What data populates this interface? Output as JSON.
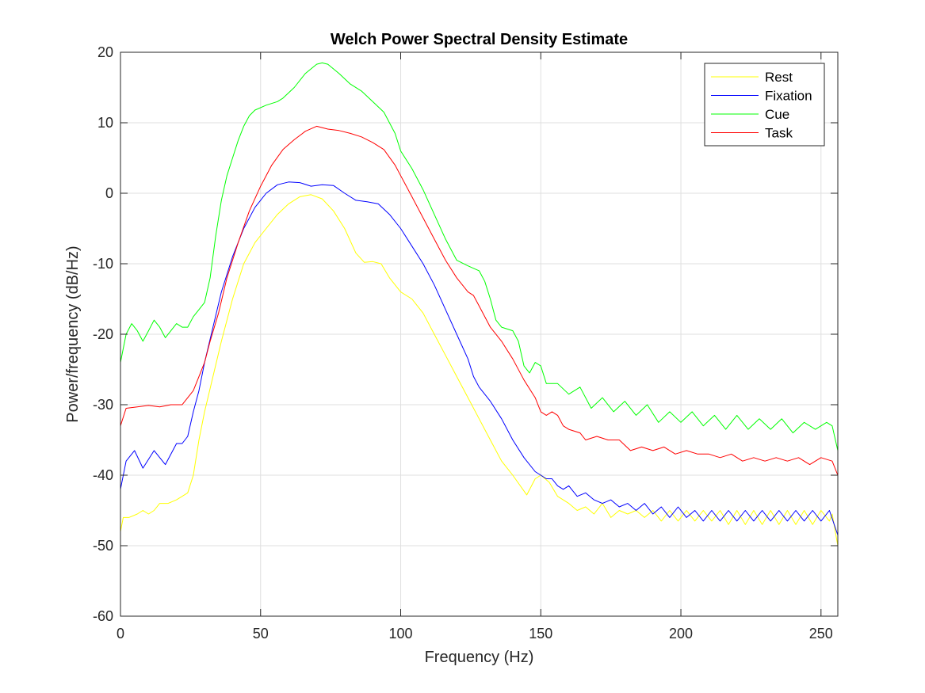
{
  "chart_data": {
    "type": "line",
    "title": "Welch Power Spectral Density Estimate",
    "xlabel": "Frequency (Hz)",
    "ylabel": "Power/frequency (dB/Hz)",
    "xlim": [
      0,
      256
    ],
    "ylim": [
      -60,
      20
    ],
    "xticks": [
      0,
      50,
      100,
      150,
      200,
      250
    ],
    "yticks": [
      -60,
      -50,
      -40,
      -30,
      -20,
      -10,
      0,
      10,
      20
    ],
    "xtick_labels": [
      "0",
      "50",
      "100",
      "150",
      "200",
      "250"
    ],
    "ytick_labels": [
      "-60",
      "-50",
      "-40",
      "-30",
      "-20",
      "-10",
      "0",
      "10",
      "20"
    ],
    "grid": true,
    "legend_position": "top-right",
    "series": [
      {
        "name": "Rest",
        "color": "#ffff00",
        "points": [
          [
            0,
            -48
          ],
          [
            1,
            -46
          ],
          [
            3,
            -46
          ],
          [
            6,
            -45.5
          ],
          [
            8,
            -45
          ],
          [
            10,
            -45.5
          ],
          [
            12,
            -45
          ],
          [
            14,
            -44
          ],
          [
            17,
            -44
          ],
          [
            20,
            -43.5
          ],
          [
            22,
            -43
          ],
          [
            24,
            -42.5
          ],
          [
            26,
            -40
          ],
          [
            28,
            -35
          ],
          [
            30,
            -31
          ],
          [
            33,
            -26
          ],
          [
            36,
            -21
          ],
          [
            40,
            -15
          ],
          [
            44,
            -10
          ],
          [
            48,
            -7
          ],
          [
            52,
            -5
          ],
          [
            56,
            -3
          ],
          [
            60,
            -1.5
          ],
          [
            64,
            -0.5
          ],
          [
            68,
            -0.2
          ],
          [
            72,
            -0.8
          ],
          [
            76,
            -2.5
          ],
          [
            80,
            -5
          ],
          [
            84,
            -8.5
          ],
          [
            87,
            -9.8
          ],
          [
            90,
            -9.7
          ],
          [
            93,
            -10
          ],
          [
            96,
            -12
          ],
          [
            100,
            -14
          ],
          [
            104,
            -15
          ],
          [
            108,
            -17
          ],
          [
            112,
            -20
          ],
          [
            116,
            -23
          ],
          [
            120,
            -26
          ],
          [
            124,
            -29
          ],
          [
            128,
            -32
          ],
          [
            132,
            -35
          ],
          [
            136,
            -38
          ],
          [
            140,
            -40
          ],
          [
            145,
            -42.8
          ],
          [
            148,
            -40.5
          ],
          [
            150,
            -40
          ],
          [
            153,
            -41
          ],
          [
            156,
            -43
          ],
          [
            160,
            -44
          ],
          [
            163,
            -45
          ],
          [
            166,
            -44.5
          ],
          [
            169,
            -45.5
          ],
          [
            172,
            -44
          ],
          [
            175,
            -46
          ],
          [
            178,
            -45
          ],
          [
            181,
            -45.5
          ],
          [
            184,
            -45
          ],
          [
            187,
            -46
          ],
          [
            190,
            -45
          ],
          [
            193,
            -46.5
          ],
          [
            196,
            -45
          ],
          [
            199,
            -46.5
          ],
          [
            202,
            -45
          ],
          [
            205,
            -46.5
          ],
          [
            208,
            -45
          ],
          [
            211,
            -46.5
          ],
          [
            214,
            -45
          ],
          [
            217,
            -47
          ],
          [
            220,
            -45
          ],
          [
            223,
            -47
          ],
          [
            226,
            -45
          ],
          [
            229,
            -47
          ],
          [
            232,
            -45
          ],
          [
            235,
            -47
          ],
          [
            238,
            -45
          ],
          [
            241,
            -47
          ],
          [
            244,
            -45
          ],
          [
            247,
            -47
          ],
          [
            250,
            -45
          ],
          [
            253,
            -46.5
          ],
          [
            254,
            -45.5
          ],
          [
            256,
            -50
          ]
        ]
      },
      {
        "name": "Fixation",
        "color": "#0000ff",
        "points": [
          [
            0,
            -42
          ],
          [
            2,
            -38
          ],
          [
            5,
            -36.5
          ],
          [
            8,
            -39
          ],
          [
            12,
            -36.5
          ],
          [
            16,
            -38.5
          ],
          [
            20,
            -35.5
          ],
          [
            22,
            -35.5
          ],
          [
            24,
            -34.5
          ],
          [
            26,
            -31
          ],
          [
            28,
            -28
          ],
          [
            30,
            -24
          ],
          [
            33,
            -19
          ],
          [
            36,
            -14
          ],
          [
            40,
            -9
          ],
          [
            44,
            -5
          ],
          [
            48,
            -2
          ],
          [
            52,
            0
          ],
          [
            56,
            1.2
          ],
          [
            60,
            1.6
          ],
          [
            64,
            1.5
          ],
          [
            68,
            1
          ],
          [
            72,
            1.2
          ],
          [
            76,
            1.1
          ],
          [
            80,
            0
          ],
          [
            84,
            -1
          ],
          [
            88,
            -1.2
          ],
          [
            92,
            -1.5
          ],
          [
            96,
            -3
          ],
          [
            100,
            -5
          ],
          [
            104,
            -7.5
          ],
          [
            108,
            -10
          ],
          [
            112,
            -13
          ],
          [
            116,
            -16.5
          ],
          [
            120,
            -20
          ],
          [
            124,
            -23.5
          ],
          [
            126,
            -26
          ],
          [
            128,
            -27.5
          ],
          [
            132,
            -29.5
          ],
          [
            136,
            -32
          ],
          [
            140,
            -35
          ],
          [
            144,
            -37.5
          ],
          [
            148,
            -39.5
          ],
          [
            150,
            -40
          ],
          [
            152,
            -40.5
          ],
          [
            154,
            -40.5
          ],
          [
            156,
            -41.5
          ],
          [
            158,
            -42
          ],
          [
            160,
            -41.5
          ],
          [
            163,
            -43
          ],
          [
            166,
            -42.5
          ],
          [
            169,
            -43.5
          ],
          [
            172,
            -44
          ],
          [
            175,
            -43.5
          ],
          [
            178,
            -44.5
          ],
          [
            181,
            -44
          ],
          [
            184,
            -45
          ],
          [
            187,
            -44
          ],
          [
            190,
            -45.5
          ],
          [
            193,
            -44.5
          ],
          [
            196,
            -46
          ],
          [
            199,
            -44.5
          ],
          [
            202,
            -46
          ],
          [
            205,
            -45
          ],
          [
            208,
            -46.5
          ],
          [
            211,
            -45
          ],
          [
            214,
            -46.5
          ],
          [
            217,
            -45
          ],
          [
            220,
            -46.5
          ],
          [
            223,
            -45
          ],
          [
            226,
            -46.5
          ],
          [
            229,
            -45
          ],
          [
            232,
            -46.5
          ],
          [
            235,
            -45
          ],
          [
            238,
            -46.5
          ],
          [
            241,
            -45
          ],
          [
            244,
            -46.5
          ],
          [
            247,
            -45
          ],
          [
            250,
            -46.5
          ],
          [
            253,
            -45
          ],
          [
            256,
            -48.5
          ]
        ]
      },
      {
        "name": "Cue",
        "color": "#00ff00",
        "points": [
          [
            0,
            -24
          ],
          [
            2,
            -20
          ],
          [
            4,
            -18.5
          ],
          [
            6,
            -19.5
          ],
          [
            8,
            -21
          ],
          [
            10,
            -19.5
          ],
          [
            12,
            -18
          ],
          [
            14,
            -19
          ],
          [
            16,
            -20.5
          ],
          [
            18,
            -19.5
          ],
          [
            20,
            -18.5
          ],
          [
            22,
            -19
          ],
          [
            24,
            -19
          ],
          [
            26,
            -17.5
          ],
          [
            28,
            -16.5
          ],
          [
            30,
            -15.5
          ],
          [
            32,
            -12
          ],
          [
            34,
            -6
          ],
          [
            36,
            -1
          ],
          [
            38,
            2.5
          ],
          [
            40,
            5
          ],
          [
            42,
            7.5
          ],
          [
            44,
            9.5
          ],
          [
            46,
            11
          ],
          [
            48,
            11.8
          ],
          [
            52,
            12.5
          ],
          [
            56,
            13
          ],
          [
            58,
            13.5
          ],
          [
            62,
            15
          ],
          [
            66,
            17
          ],
          [
            70,
            18.3
          ],
          [
            72,
            18.5
          ],
          [
            74,
            18.3
          ],
          [
            78,
            17
          ],
          [
            82,
            15.5
          ],
          [
            86,
            14.5
          ],
          [
            90,
            13
          ],
          [
            94,
            11.5
          ],
          [
            98,
            8.5
          ],
          [
            100,
            6
          ],
          [
            104,
            3.5
          ],
          [
            108,
            0.5
          ],
          [
            112,
            -3
          ],
          [
            116,
            -6.5
          ],
          [
            120,
            -9.5
          ],
          [
            124,
            -10.3
          ],
          [
            128,
            -11
          ],
          [
            130,
            -12.5
          ],
          [
            132,
            -15
          ],
          [
            134,
            -18
          ],
          [
            136,
            -19
          ],
          [
            140,
            -19.5
          ],
          [
            142,
            -21
          ],
          [
            144,
            -24.5
          ],
          [
            146,
            -25.5
          ],
          [
            148,
            -24
          ],
          [
            150,
            -24.5
          ],
          [
            152,
            -27
          ],
          [
            156,
            -27
          ],
          [
            160,
            -28.5
          ],
          [
            164,
            -27.5
          ],
          [
            168,
            -30.5
          ],
          [
            172,
            -29
          ],
          [
            176,
            -31
          ],
          [
            180,
            -29.5
          ],
          [
            184,
            -31.5
          ],
          [
            188,
            -30
          ],
          [
            192,
            -32.5
          ],
          [
            196,
            -31
          ],
          [
            200,
            -32.5
          ],
          [
            204,
            -31
          ],
          [
            208,
            -33
          ],
          [
            212,
            -31.5
          ],
          [
            216,
            -33.5
          ],
          [
            220,
            -31.5
          ],
          [
            224,
            -33.5
          ],
          [
            228,
            -32
          ],
          [
            232,
            -33.5
          ],
          [
            236,
            -32
          ],
          [
            240,
            -34
          ],
          [
            244,
            -32.5
          ],
          [
            248,
            -33.5
          ],
          [
            252,
            -32.5
          ],
          [
            254,
            -33
          ],
          [
            256,
            -36.5
          ]
        ]
      },
      {
        "name": "Task",
        "color": "#ff0000",
        "points": [
          [
            0,
            -33
          ],
          [
            2,
            -30.5
          ],
          [
            6,
            -30.3
          ],
          [
            10,
            -30.1
          ],
          [
            14,
            -30.3
          ],
          [
            18,
            -30
          ],
          [
            22,
            -30
          ],
          [
            26,
            -28
          ],
          [
            28,
            -26
          ],
          [
            30,
            -24
          ],
          [
            32,
            -21
          ],
          [
            35,
            -17
          ],
          [
            38,
            -12
          ],
          [
            42,
            -7
          ],
          [
            46,
            -2.5
          ],
          [
            50,
            1
          ],
          [
            54,
            4
          ],
          [
            58,
            6.2
          ],
          [
            62,
            7.6
          ],
          [
            66,
            8.8
          ],
          [
            70,
            9.5
          ],
          [
            74,
            9.1
          ],
          [
            78,
            8.9
          ],
          [
            82,
            8.5
          ],
          [
            86,
            8
          ],
          [
            90,
            7.2
          ],
          [
            94,
            6.2
          ],
          [
            98,
            4
          ],
          [
            100,
            2.5
          ],
          [
            104,
            -0.5
          ],
          [
            108,
            -3.5
          ],
          [
            112,
            -6.5
          ],
          [
            116,
            -9.5
          ],
          [
            120,
            -12
          ],
          [
            124,
            -14
          ],
          [
            126,
            -14.5
          ],
          [
            128,
            -16
          ],
          [
            132,
            -19
          ],
          [
            136,
            -21
          ],
          [
            140,
            -23.5
          ],
          [
            144,
            -26.5
          ],
          [
            148,
            -29
          ],
          [
            150,
            -31
          ],
          [
            152,
            -31.5
          ],
          [
            154,
            -31
          ],
          [
            156,
            -31.5
          ],
          [
            158,
            -33
          ],
          [
            160,
            -33.5
          ],
          [
            164,
            -34
          ],
          [
            166,
            -35
          ],
          [
            170,
            -34.5
          ],
          [
            174,
            -35
          ],
          [
            178,
            -35
          ],
          [
            182,
            -36.5
          ],
          [
            186,
            -36
          ],
          [
            190,
            -36.5
          ],
          [
            194,
            -36
          ],
          [
            198,
            -37
          ],
          [
            202,
            -36.5
          ],
          [
            206,
            -37
          ],
          [
            210,
            -37
          ],
          [
            214,
            -37.5
          ],
          [
            218,
            -37
          ],
          [
            222,
            -38
          ],
          [
            226,
            -37.5
          ],
          [
            230,
            -38
          ],
          [
            234,
            -37.5
          ],
          [
            238,
            -38
          ],
          [
            242,
            -37.5
          ],
          [
            246,
            -38.5
          ],
          [
            250,
            -37.5
          ],
          [
            254,
            -38
          ],
          [
            256,
            -40
          ]
        ]
      }
    ]
  }
}
